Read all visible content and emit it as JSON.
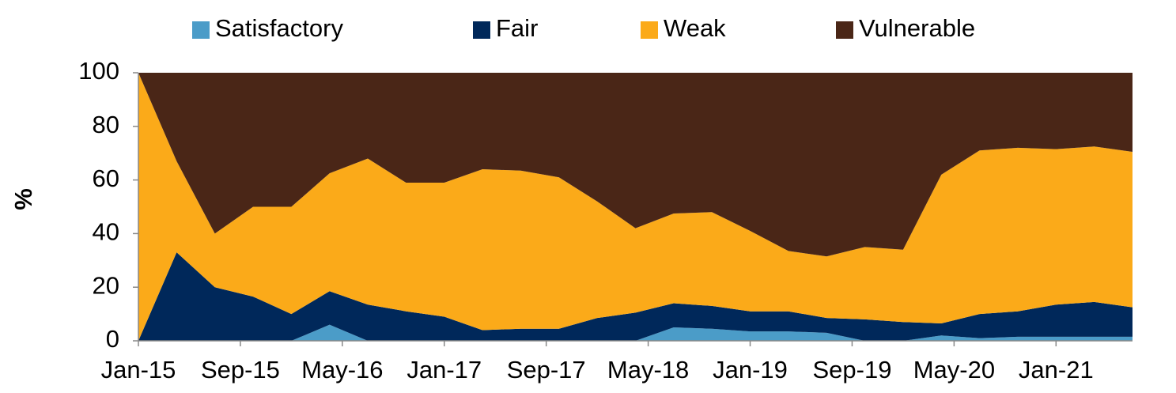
{
  "chart_data": {
    "type": "stacked_area",
    "y_label": "%",
    "x": [
      "Jan-15",
      "Apr-15",
      "Jul-15",
      "Oct-15",
      "Jan-16",
      "Apr-16",
      "Jul-16",
      "Oct-16",
      "Jan-17",
      "Apr-17",
      "Jul-17",
      "Oct-17",
      "Jan-18",
      "Apr-18",
      "Jul-18",
      "Oct-18",
      "Jan-19",
      "Apr-19",
      "Jul-19",
      "Oct-19",
      "Jan-20",
      "Apr-20",
      "Jul-20",
      "Oct-20",
      "Jan-21",
      "Apr-21",
      "Jul-21"
    ],
    "xlim": [
      "Jan-15",
      "Jul-21"
    ],
    "xticks": [
      "Jan-15",
      "Sep-15",
      "May-16",
      "Jan-17",
      "Sep-17",
      "May-18",
      "Jan-19",
      "Sep-19",
      "May-20",
      "Jan-21"
    ],
    "ylim": [
      0,
      100
    ],
    "yticks": [
      0,
      20,
      40,
      60,
      80,
      100
    ],
    "legend": "top",
    "series": [
      {
        "name": "Satisfactory",
        "color": "#4b9cc8",
        "values": [
          0,
          0,
          0,
          0,
          0,
          6,
          0,
          0,
          0,
          0,
          0,
          0,
          0,
          0,
          5,
          4.5,
          3.5,
          3.5,
          3,
          0,
          0,
          2,
          1,
          1.5,
          1.5,
          1.5,
          1.5
        ]
      },
      {
        "name": "Fair",
        "color": "#00285a",
        "values": [
          0,
          33,
          20,
          16.5,
          10,
          12.5,
          13.5,
          11,
          9,
          4,
          4.5,
          4.5,
          8.5,
          10.5,
          9,
          8.5,
          7.5,
          7.5,
          5.5,
          8,
          7,
          4.5,
          9,
          9.5,
          12,
          13,
          11
        ]
      },
      {
        "name": "Weak",
        "color": "#fbaa19",
        "values": [
          100,
          34,
          20,
          33.5,
          40,
          44,
          54.5,
          48,
          50,
          60,
          59,
          56.5,
          43.5,
          31.5,
          33.5,
          35,
          30,
          22.5,
          23,
          27,
          27,
          55.5,
          61,
          61,
          58,
          58,
          58
        ]
      },
      {
        "name": "Vulnerable",
        "color": "#4a2617",
        "values": [
          0,
          33,
          60,
          50,
          50,
          37.5,
          32,
          41,
          41,
          36,
          36.5,
          39,
          48,
          58,
          52.5,
          52,
          59,
          66.5,
          68.5,
          65,
          66,
          38,
          29,
          28,
          28.5,
          27.5,
          29.5
        ]
      }
    ]
  }
}
